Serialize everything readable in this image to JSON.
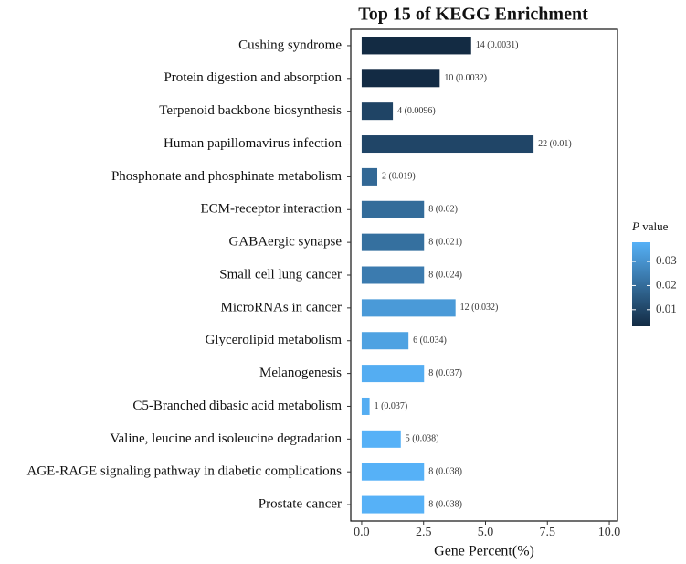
{
  "chart_data": {
    "type": "barh",
    "title": "Top 15 of KEGG Enrichment",
    "x_label": "Gene Percent(%)",
    "categories": [
      "Cushing syndrome",
      "Protein digestion and absorption",
      "Terpenoid backbone biosynthesis",
      "Human papillomavirus infection",
      "Phosphonate and phosphinate metabolism",
      "ECM-receptor interaction",
      "GABAergic synapse",
      "Small cell lung cancer",
      "MicroRNAs in cancer",
      "Glycerolipid metabolism",
      "Melanogenesis",
      "C5-Branched dibasic acid metabolism",
      "Valine, leucine and isoleucine degradation",
      "AGE-RAGE signaling pathway in diabetic complications",
      "Prostate cancer"
    ],
    "values": [
      4.42,
      3.15,
      1.26,
      6.94,
      0.63,
      2.52,
      2.52,
      2.52,
      3.79,
      1.89,
      2.52,
      0.32,
      1.58,
      2.52,
      2.52
    ],
    "p_values": [
      0.0031,
      0.0032,
      0.0096,
      0.01,
      0.019,
      0.02,
      0.021,
      0.024,
      0.032,
      0.034,
      0.037,
      0.037,
      0.038,
      0.038,
      0.038
    ],
    "labels": [
      "14 (0.0031)",
      "10 (0.0032)",
      "4 (0.0096)",
      "22 (0.01)",
      "2 (0.019)",
      "8 (0.02)",
      "8 (0.021)",
      "8 (0.024)",
      "12 (0.032)",
      "6 (0.034)",
      "8 (0.037)",
      "1 (0.037)",
      "5 (0.038)",
      "8 (0.038)",
      "8 (0.038)"
    ],
    "xlim": [
      -0.44,
      10.33
    ],
    "xticks": [
      {
        "value": 0,
        "label": "0.0"
      },
      {
        "value": 2.5,
        "label": "2.5"
      },
      {
        "value": 5,
        "label": "5.0"
      },
      {
        "value": 7.5,
        "label": "7.5"
      },
      {
        "value": 10,
        "label": "10.0"
      }
    ],
    "colorbar": {
      "title_symbol": "P",
      "title": "value",
      "low_color": "#132b43",
      "high_color": "#56b1f7",
      "clim": [
        0.0031,
        0.038
      ],
      "ticks": [
        0.01,
        0.02,
        0.03
      ]
    }
  }
}
